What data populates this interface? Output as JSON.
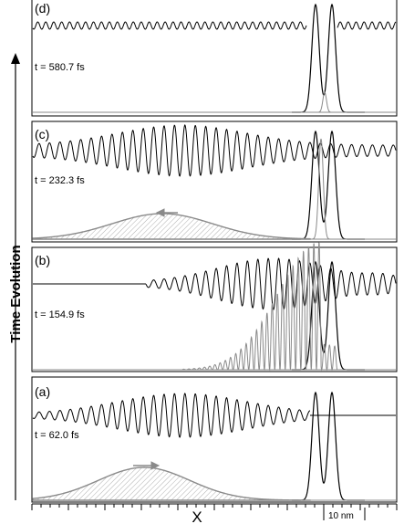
{
  "figure": {
    "y_axis_label": "Time Evolution",
    "x_axis_label": "X",
    "scale_bar_label": "10 nm"
  },
  "panels": [
    {
      "id": "d",
      "label": "(d)",
      "time": "t = 580.7 fs",
      "arrow": ""
    },
    {
      "id": "c",
      "label": "(c)",
      "time": "t = 232.3 fs",
      "arrow": "left"
    },
    {
      "id": "b",
      "label": "(b)",
      "time": "t = 154.9 fs",
      "arrow": ""
    },
    {
      "id": "a",
      "label": "(a)",
      "time": "t = 62.0 fs",
      "arrow": "right"
    }
  ],
  "colors": {
    "line": "#000000",
    "packet": "#8a8a8a",
    "hatch": "#9a9a9a"
  }
}
